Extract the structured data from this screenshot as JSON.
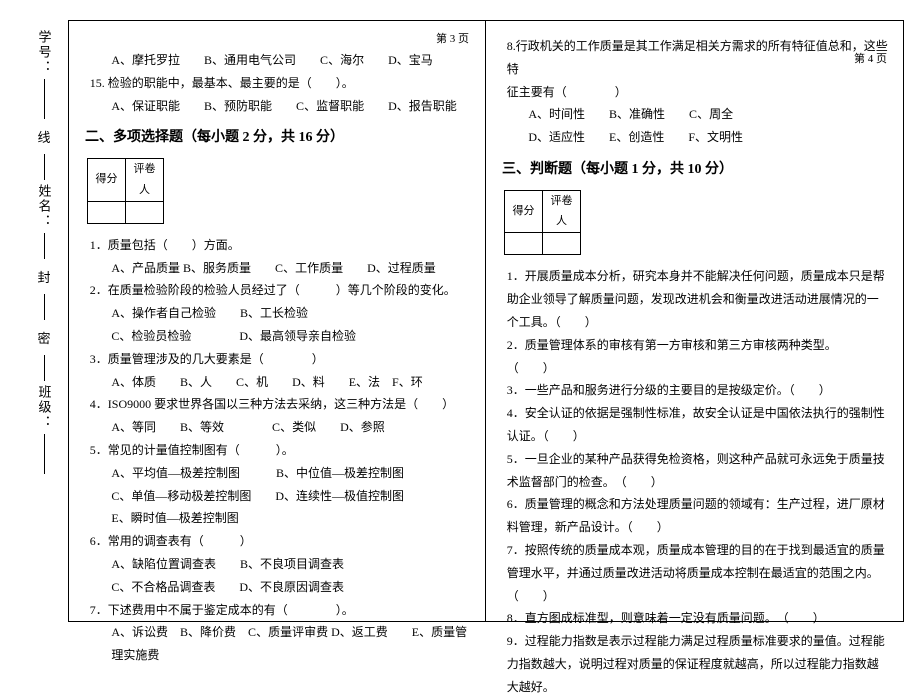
{
  "page_left_label": "第 3 页",
  "page_right_label": "第 4 页",
  "binding": {
    "class": "班级：",
    "name": "姓名：",
    "no": "学号：",
    "mi": "密",
    "feng": "封",
    "xian": "线"
  },
  "left": {
    "q14_opts": "A、摩托罗拉　　B、通用电气公司　　C、海尔　　D、宝马",
    "q15_stem": "15. 检验的职能中，最基本、最主要的是（　　）。",
    "q15_opts": "A、保证职能　　B、预防职能　　C、监督职能　　D、报告职能",
    "sec2_title": "二、多项选择题（每小题 2 分，共 16 分）",
    "score_hdr1": "得分",
    "score_hdr2": "评卷人",
    "q1": "1．质量包括（　　）方面。",
    "q1_opts": "A、产品质量  B、服务质量　　C、工作质量　　D、过程质量",
    "q2": "2．在质量检验阶段的检验人员经过了（　　　）等几个阶段的变化。",
    "q2_opts1": "A、操作者自己检验　　B、工长检验",
    "q2_opts2": "C、检验员检验　　　　D、最高领导亲自检验",
    "q3": "3．质量管理涉及的几大要素是（　　　　）",
    "q3_opts": "A、体质　　B、人　　C、机　　D、料　　E、法　F、环",
    "q4": "4．ISO9000 要求世界各国以三种方法去采纳，这三种方法是（　　）",
    "q4_opts": "A、等同　　B、等效　　　　C、类似　　D、参照",
    "q5": "5．常见的计量值控制图有（　　　）。",
    "q5_opts1": "A、平均值—极差控制图　　　B、中位值—极差控制图",
    "q5_opts2": "C、单值—移动极差控制图　　D、连续性—极值控制图",
    "q5_opts3": "E、瞬时值—极差控制图",
    "q6": "6．常用的调查表有（　　　）",
    "q6_opts1": "A、缺陷位置调查表　　B、不良项目调查表",
    "q6_opts2": "C、不合格品调查表　　D、不良原因调查表",
    "q7": "7．下述费用中不属于鉴定成本的有（　　　　）。",
    "q7_opts": "A、诉讼费　B、降价费　C、质量评审费 D、返工费　　E、质量管理实施费"
  },
  "right": {
    "q8_stem": "8.行政机关的工作质量是其工作满足相关方需求的所有特征值总和，这些特",
    "q8_line2": "征主要有（　　　　）",
    "q8_opts1": "A、时间性　　B、准确性　　C、周全",
    "q8_opts2": "D、适应性　　E、创造性　　F、文明性",
    "sec3_title": "三、判断题（每小题 1 分，共 10 分）",
    "score_hdr1": "得分",
    "score_hdr2": "评卷人",
    "j1": "1．开展质量成本分析，研究本身并不能解决任何问题，质量成本只是帮助企业领导了解质量问题，发现改进机会和衡量改进活动进展情况的一个工具。（　　）",
    "j2": "2．质量管理体系的审核有第一方审核和第三方审核两种类型。　　（　　）",
    "j3": "3．一些产品和服务进行分级的主要目的是按级定价。（　　）",
    "j4": "4．安全认证的依据是强制性标准，故安全认证是中国依法执行的强制性认证。（　　）",
    "j5": "5．一旦企业的某种产品获得免检资格，则这种产品就可永远免于质量技术监督部门的检查。　（　　）",
    "j6": "6．质量管理的概念和方法处理质量问题的领域有：生产过程，进厂原材料管理，新产品设计。（　　）",
    "j7": "7．按照传统的质量成本观，质量成本管理的目的在于找到最适宜的质量管理水平，并通过质量改进活动将质量成本控制在最适宜的范围之内。（　　）",
    "j8": "8．直方图成标准型，则意味着一定没有质量问题。　（　　）",
    "j9": "9．过程能力指数是表示过程能力满足过程质量标准要求的量值。过程能力指数越大，说明过程对质量的保证程度就越高，所以过程能力指数越大越好。"
  }
}
